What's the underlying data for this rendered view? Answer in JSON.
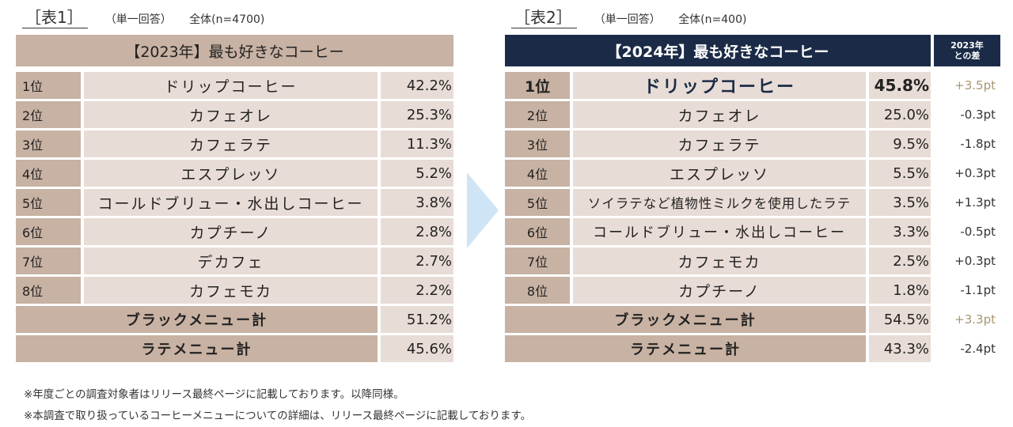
{
  "table1": {
    "tag": "［表1］",
    "answer_type": "（単一回答）",
    "sample": "全体(n=4700)",
    "title": "【2023年】最も好きなコーヒー",
    "rows": [
      {
        "rank": "1位",
        "name": "ドリップコーヒー",
        "pct": "42.2%"
      },
      {
        "rank": "2位",
        "name": "カフェオレ",
        "pct": "25.3%"
      },
      {
        "rank": "3位",
        "name": "カフェラテ",
        "pct": "11.3%"
      },
      {
        "rank": "4位",
        "name": "エスプレッソ",
        "pct": "5.2%"
      },
      {
        "rank": "5位",
        "name": "コールドブリュー・水出しコーヒー",
        "pct": "3.8%"
      },
      {
        "rank": "6位",
        "name": "カプチーノ",
        "pct": "2.8%"
      },
      {
        "rank": "7位",
        "name": "デカフェ",
        "pct": "2.7%"
      },
      {
        "rank": "8位",
        "name": "カフェモカ",
        "pct": "2.2%"
      }
    ],
    "totals": [
      {
        "label": "ブラックメニュー計",
        "pct": "51.2%"
      },
      {
        "label": "ラテメニュー計",
        "pct": "45.6%"
      }
    ]
  },
  "table2": {
    "tag": "［表2］",
    "answer_type": "（単一回答）",
    "sample": "全体(n=400)",
    "title": "【2024年】最も好きなコーヒー",
    "diff_header_line1": "2023年",
    "diff_header_line2": "との差",
    "rows": [
      {
        "rank": "1位",
        "name": "ドリップコーヒー",
        "pct": "45.8%",
        "diff": "+3.5pt"
      },
      {
        "rank": "2位",
        "name": "カフェオレ",
        "pct": "25.0%",
        "diff": "-0.3pt"
      },
      {
        "rank": "3位",
        "name": "カフェラテ",
        "pct": "9.5%",
        "diff": "-1.8pt"
      },
      {
        "rank": "4位",
        "name": "エスプレッソ",
        "pct": "5.5%",
        "diff": "+0.3pt"
      },
      {
        "rank": "5位",
        "name": "ソイラテなど植物性ミルクを使用したラテ",
        "pct": "3.5%",
        "diff": "+1.3pt"
      },
      {
        "rank": "6位",
        "name": "コールドブリュー・水出しコーヒー",
        "pct": "3.3%",
        "diff": "-0.5pt"
      },
      {
        "rank": "7位",
        "name": "カフェモカ",
        "pct": "2.5%",
        "diff": "+0.3pt"
      },
      {
        "rank": "8位",
        "name": "カプチーノ",
        "pct": "1.8%",
        "diff": "-1.1pt"
      }
    ],
    "totals": [
      {
        "label": "ブラックメニュー計",
        "pct": "54.5%",
        "diff": "+3.3pt"
      },
      {
        "label": "ラテメニュー計",
        "pct": "43.3%",
        "diff": "-2.4pt"
      }
    ]
  },
  "notes": [
    "※年度ごとの調査対象者はリリース最終ページに記載しております。以降同様。",
    "※本調査で取り扱っているコーヒーメニューについての詳細は、リリース最終ページに記載しております。"
  ],
  "colors": {
    "rank_bg": "#c8b2a3",
    "cell_bg": "#e8dcd6",
    "navy": "#1b2b47",
    "arrow": "#cfe5f6",
    "diff_up": "#a89570"
  }
}
